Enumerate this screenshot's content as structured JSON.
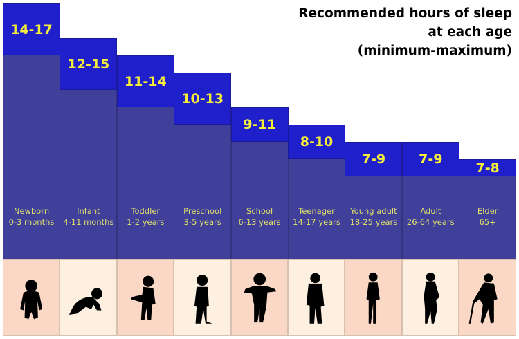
{
  "title": [
    "Recommended hours of sleep",
    "at each age",
    "(minimum-maximum)"
  ],
  "colors": {
    "range": "#1f1fcc",
    "base": "#40409b",
    "value_text": "#f4ee3a",
    "label_text": "#dede6a",
    "pink": "#fbd8c6",
    "cream": "#fdf0e0"
  },
  "chart_data": {
    "type": "bar",
    "title": "Recommended hours of sleep at each age (minimum-maximum)",
    "xlabel": "",
    "ylabel": "Hours of sleep",
    "categories": [
      "Newborn",
      "Infant",
      "Toddler",
      "Preschool",
      "School",
      "Teenager",
      "Young adult",
      "Adult",
      "Elder"
    ],
    "age_ranges": [
      "0-3 months",
      "4-11 months",
      "1-2 years",
      "3-5 years",
      "6-13 years",
      "14-17 years",
      "18-25 years",
      "26-64 years",
      "65+"
    ],
    "series": [
      {
        "name": "minimum",
        "values": [
          14,
          12,
          11,
          10,
          9,
          8,
          7,
          7,
          7
        ]
      },
      {
        "name": "maximum",
        "values": [
          17,
          15,
          14,
          13,
          11,
          10,
          9,
          9,
          8
        ]
      }
    ],
    "labels": [
      "14-17",
      "12-15",
      "11-14",
      "10-13",
      "9-11",
      "8-10",
      "7-9",
      "7-9",
      "7-8"
    ],
    "icons": [
      "baby-standing-icon",
      "baby-crawling-icon",
      "toddler-icon",
      "preschooler-icon",
      "school-child-icon",
      "teenager-icon",
      "young-adult-icon",
      "adult-woman-icon",
      "elder-with-cane-icon"
    ],
    "grid": false
  }
}
